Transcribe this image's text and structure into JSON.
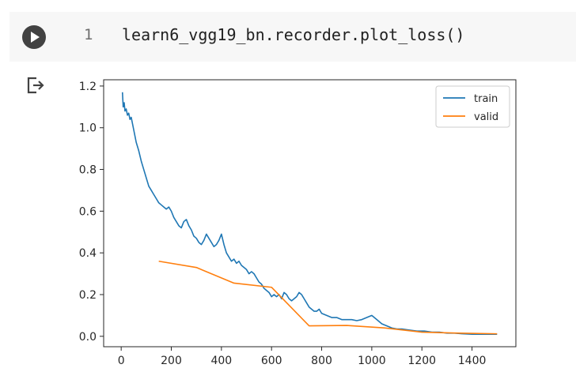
{
  "cell": {
    "line_number": "1",
    "code": "learn6_vgg19_bn.recorder.plot_loss()",
    "run_icon": "play-icon"
  },
  "output": {
    "icon": "output-exit-icon"
  },
  "colors": {
    "train": "#1f77b4",
    "valid": "#ff7f0e",
    "cell_bg": "#f7f7f7",
    "run_button": "#424242"
  },
  "chart_data": {
    "type": "line",
    "title": "",
    "xlabel": "",
    "ylabel": "",
    "xlim": [
      -70,
      1575
    ],
    "ylim": [
      -0.05,
      1.23
    ],
    "xticks": [
      0,
      200,
      400,
      600,
      800,
      1000,
      1200,
      1400
    ],
    "xtick_labels": [
      "0",
      "200",
      "400",
      "600",
      "800",
      "1000",
      "1200",
      "1400"
    ],
    "yticks": [
      0.0,
      0.2,
      0.4,
      0.6,
      0.8,
      1.0,
      1.2
    ],
    "ytick_labels": [
      "0.0",
      "0.2",
      "0.4",
      "0.6",
      "0.8",
      "1.0",
      "1.2"
    ],
    "legend_position": "top-right",
    "grid": false,
    "series": [
      {
        "name": "train",
        "color": "#1f77b4",
        "x": [
          5,
          8,
          12,
          15,
          20,
          25,
          30,
          35,
          40,
          45,
          50,
          55,
          60,
          70,
          80,
          90,
          100,
          110,
          120,
          130,
          140,
          150,
          160,
          170,
          180,
          190,
          200,
          210,
          220,
          230,
          240,
          250,
          260,
          270,
          280,
          290,
          300,
          310,
          320,
          330,
          340,
          350,
          360,
          370,
          380,
          390,
          400,
          410,
          420,
          430,
          440,
          450,
          460,
          470,
          480,
          490,
          500,
          510,
          520,
          530,
          540,
          550,
          560,
          570,
          580,
          590,
          600,
          610,
          620,
          630,
          640,
          650,
          660,
          670,
          680,
          690,
          700,
          710,
          720,
          730,
          740,
          750,
          760,
          770,
          780,
          790,
          800,
          820,
          840,
          860,
          880,
          900,
          920,
          940,
          960,
          980,
          1000,
          1010,
          1020,
          1040,
          1060,
          1080,
          1100,
          1120,
          1150,
          1180,
          1210,
          1240,
          1270,
          1300,
          1330,
          1360,
          1400,
          1440,
          1480,
          1500
        ],
        "y": [
          1.17,
          1.1,
          1.12,
          1.08,
          1.09,
          1.06,
          1.07,
          1.04,
          1.05,
          1.02,
          0.99,
          0.96,
          0.93,
          0.89,
          0.84,
          0.8,
          0.76,
          0.72,
          0.7,
          0.68,
          0.66,
          0.64,
          0.63,
          0.62,
          0.61,
          0.62,
          0.6,
          0.57,
          0.55,
          0.53,
          0.52,
          0.55,
          0.56,
          0.53,
          0.51,
          0.48,
          0.47,
          0.45,
          0.44,
          0.46,
          0.49,
          0.47,
          0.45,
          0.43,
          0.44,
          0.46,
          0.49,
          0.44,
          0.4,
          0.38,
          0.36,
          0.37,
          0.35,
          0.36,
          0.34,
          0.33,
          0.32,
          0.3,
          0.31,
          0.3,
          0.28,
          0.26,
          0.25,
          0.23,
          0.22,
          0.21,
          0.19,
          0.2,
          0.19,
          0.2,
          0.18,
          0.21,
          0.2,
          0.18,
          0.17,
          0.18,
          0.19,
          0.21,
          0.2,
          0.18,
          0.16,
          0.14,
          0.13,
          0.12,
          0.12,
          0.13,
          0.11,
          0.1,
          0.09,
          0.09,
          0.08,
          0.08,
          0.08,
          0.075,
          0.08,
          0.09,
          0.1,
          0.09,
          0.08,
          0.06,
          0.05,
          0.04,
          0.035,
          0.035,
          0.03,
          0.025,
          0.025,
          0.02,
          0.02,
          0.015,
          0.015,
          0.012,
          0.01,
          0.01,
          0.01,
          0.01
        ]
      },
      {
        "name": "valid",
        "color": "#ff7f0e",
        "x": [
          150,
          300,
          450,
          600,
          750,
          900,
          1050,
          1200,
          1350,
          1500
        ],
        "y": [
          0.36,
          0.33,
          0.255,
          0.235,
          0.05,
          0.052,
          0.04,
          0.02,
          0.015,
          0.012
        ]
      }
    ]
  }
}
